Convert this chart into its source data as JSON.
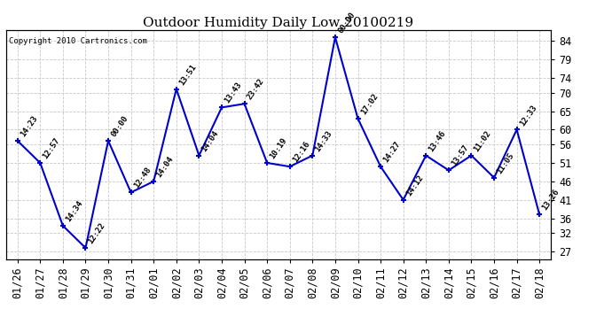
{
  "title": "Outdoor Humidity Daily Low 20100219",
  "copyright": "Copyright 2010 Cartronics.com",
  "x_labels": [
    "01/26",
    "01/27",
    "01/28",
    "01/29",
    "01/30",
    "01/31",
    "02/01",
    "02/02",
    "02/03",
    "02/04",
    "02/05",
    "02/06",
    "02/07",
    "02/08",
    "02/09",
    "02/10",
    "02/11",
    "02/12",
    "02/13",
    "02/14",
    "02/15",
    "02/16",
    "02/17",
    "02/18"
  ],
  "y_values": [
    57,
    51,
    34,
    28,
    57,
    43,
    46,
    71,
    53,
    66,
    67,
    51,
    50,
    53,
    85,
    63,
    50,
    41,
    53,
    49,
    53,
    47,
    60,
    37
  ],
  "point_labels": [
    "14:23",
    "12:57",
    "14:34",
    "12:22",
    "00:00",
    "12:48",
    "14:04",
    "13:51",
    "14:04",
    "13:43",
    "23:42",
    "10:19",
    "12:16",
    "14:33",
    "00:00",
    "17:02",
    "14:27",
    "14:12",
    "13:46",
    "13:57",
    "11:02",
    "11:05",
    "12:33",
    "13:26"
  ],
  "line_color": "#0000CC",
  "marker_color": "#0000CC",
  "background_color": "#ffffff",
  "grid_color": "#c8c8c8",
  "y_ticks": [
    27,
    32,
    36,
    41,
    46,
    51,
    56,
    60,
    65,
    70,
    74,
    79,
    84
  ],
  "y_min": 25,
  "y_max": 87,
  "title_fontsize": 11,
  "label_fontsize": 6.5,
  "tick_fontsize": 8.5
}
